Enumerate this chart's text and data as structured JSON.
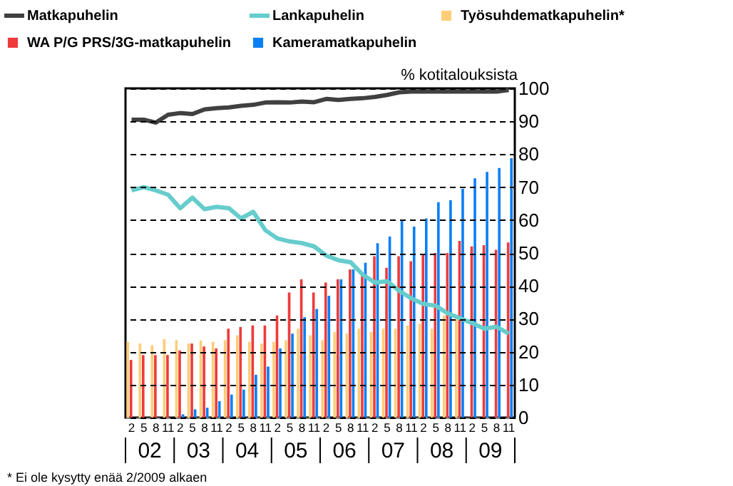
{
  "chart_data": {
    "type": "bar",
    "ylabel": "% kotitalouksista",
    "categories": [
      "2",
      "5",
      "8",
      "11",
      "2",
      "5",
      "8",
      "11",
      "2",
      "5",
      "8",
      "11",
      "2",
      "5",
      "8",
      "11",
      "2",
      "5",
      "8",
      "11",
      "2",
      "5",
      "8",
      "11",
      "2",
      "5",
      "8",
      "11",
      "2",
      "5",
      "8",
      "11"
    ],
    "series": [
      {
        "name": "Matkapuhelin",
        "type": "line",
        "color": "#404040",
        "values": [
          90.5,
          90.5,
          89.6,
          92,
          92.5,
          92.2,
          93.6,
          94,
          94.2,
          94.7,
          95,
          95.7,
          95.8,
          95.7,
          96,
          95.8,
          96.8,
          96.5,
          96.8,
          97,
          97.4,
          98,
          98.8,
          99,
          99,
          99,
          99,
          99,
          99,
          99,
          99,
          99.5
        ]
      },
      {
        "name": "Lankapuhelin",
        "type": "line",
        "color": "#66cccc",
        "values": [
          69,
          70,
          69,
          67.7,
          63.6,
          66.8,
          63.3,
          64,
          63.6,
          60.5,
          62.5,
          56.9,
          54.4,
          53.5,
          53,
          52,
          49.2,
          47.8,
          47.2,
          43.4,
          41,
          41.4,
          38.5,
          36.2,
          34.5,
          34,
          31.6,
          30.2,
          28.7,
          27,
          27.6,
          25.5
        ]
      },
      {
        "name": "Työsuhdematkapuhelin*",
        "type": "bar",
        "color": "#ffcc77",
        "values": [
          23,
          22.5,
          22,
          23.8,
          23.5,
          22.5,
          23.4,
          23,
          23.5,
          25,
          23,
          22.5,
          23,
          23.5,
          27,
          25,
          23.5,
          26,
          25.5,
          27,
          26,
          27,
          27,
          28,
          28.5,
          27,
          31,
          30,
          null,
          null,
          null,
          null
        ]
      },
      {
        "name": "WA P/G PRS/3G-matkapuhelin",
        "type": "bar",
        "color": "#ee3b3b",
        "values": [
          17.5,
          19,
          19,
          19,
          20.4,
          22.5,
          21.6,
          21,
          27,
          27.5,
          28,
          28,
          31,
          38,
          42,
          38,
          41,
          42,
          45,
          43,
          49,
          45.5,
          49,
          47.5,
          49.6,
          50,
          50,
          53.7,
          52,
          52.4,
          51,
          53.2
        ]
      },
      {
        "name": "Kameramatkapuhelin",
        "type": "bar",
        "color": "#0a7ff5",
        "values": [
          null,
          null,
          null,
          null,
          1,
          2.5,
          3,
          5,
          7,
          8.5,
          13,
          15.5,
          21,
          25.5,
          30.5,
          33,
          37,
          42,
          45,
          47,
          53,
          55,
          60,
          58,
          60.5,
          65.4,
          66,
          69.5,
          72.7,
          74.6,
          75.8,
          78.8
        ]
      }
    ],
    "ylim": [
      0,
      100
    ],
    "yticks": [
      0,
      10,
      20,
      30,
      40,
      50,
      60,
      70,
      80,
      90,
      100
    ],
    "grid": "y",
    "legend": "top left",
    "line_style": "solid",
    "annotations": [
      "02",
      "03",
      "04",
      "05",
      "06",
      "07",
      "08",
      "09",
      "* Ei ole kysytty enää 2/2009 alkaen"
    ]
  }
}
